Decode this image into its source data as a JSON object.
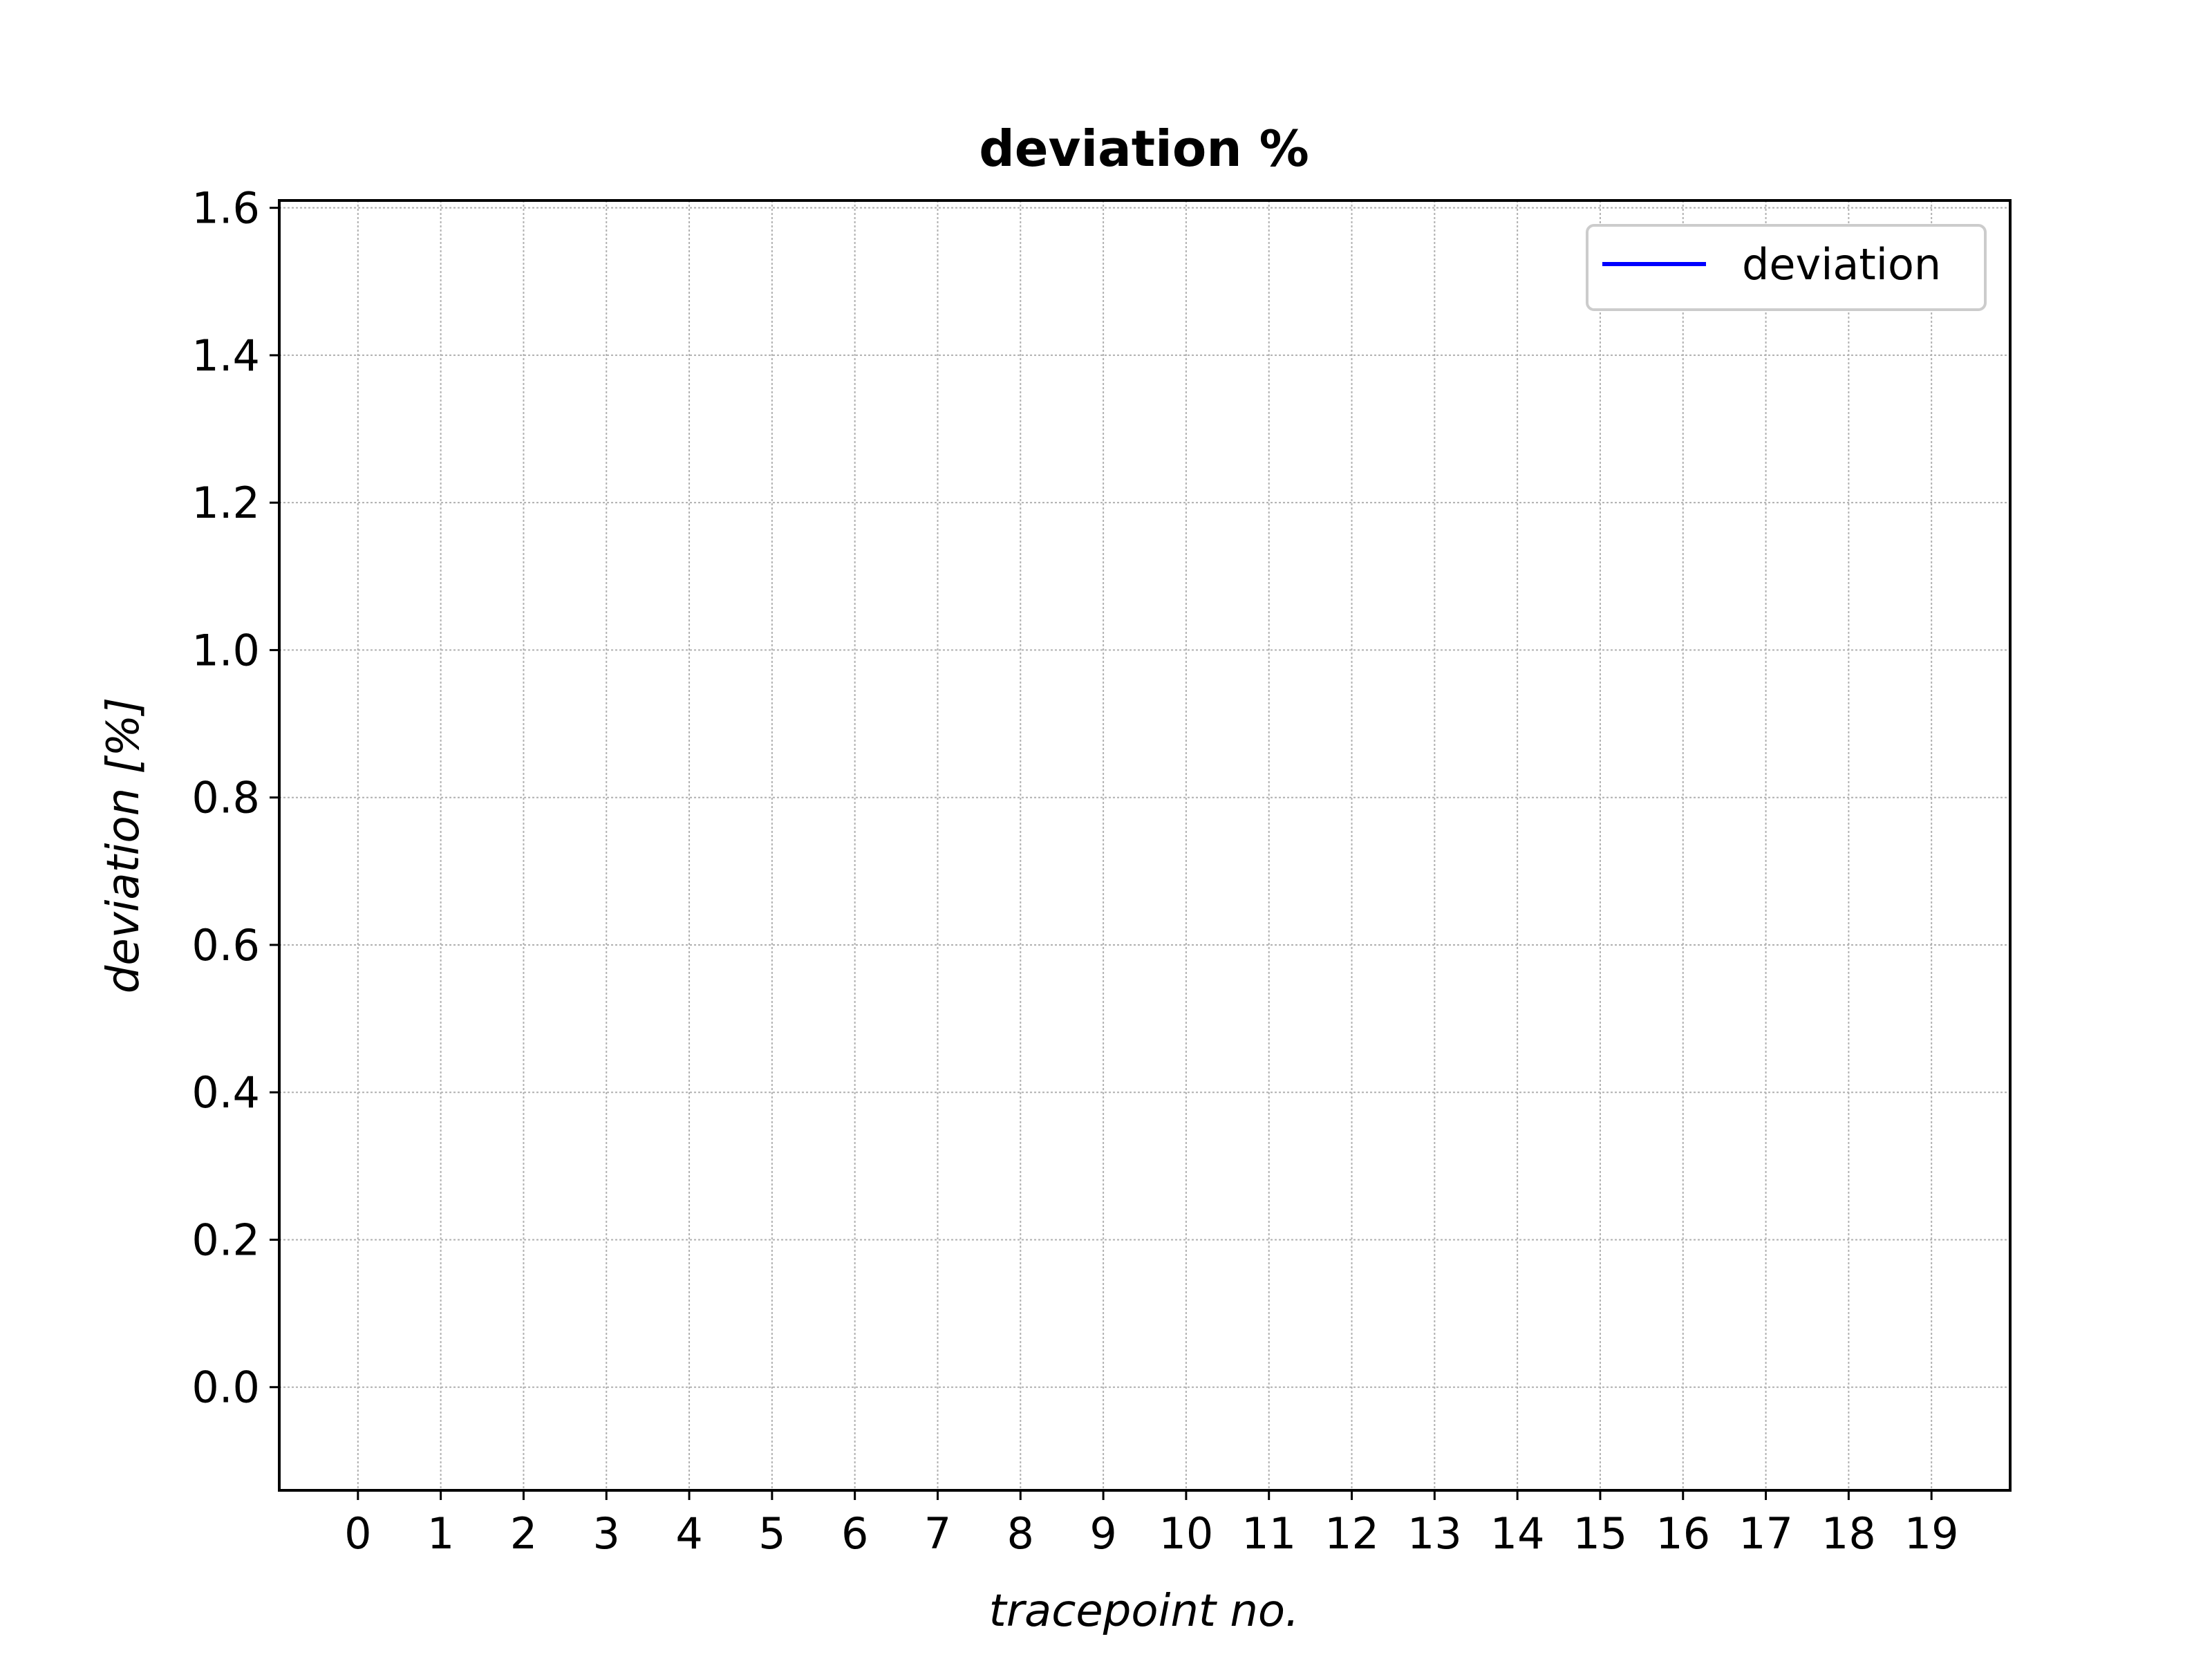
{
  "chart_data": {
    "type": "line",
    "title": "deviation %",
    "xlabel": "tracepoint no.",
    "ylabel": "deviation [%]",
    "x_ticks": [
      "0",
      "1",
      "2",
      "3",
      "4",
      "5",
      "6",
      "7",
      "8",
      "9",
      "10",
      "11",
      "12",
      "13",
      "14",
      "15",
      "16",
      "17",
      "18",
      "19"
    ],
    "y_ticks": [
      "0.0",
      "0.2",
      "0.4",
      "0.6",
      "0.8",
      "1.0",
      "1.2",
      "1.4",
      "1.6"
    ],
    "xlim": [
      -0.95,
      19.95
    ],
    "ylim": [
      -0.14,
      1.61
    ],
    "grid": true,
    "legend_position": "upper-right",
    "series": [
      {
        "name": "deviation",
        "color": "#0000ff",
        "x": [],
        "y": []
      }
    ]
  }
}
